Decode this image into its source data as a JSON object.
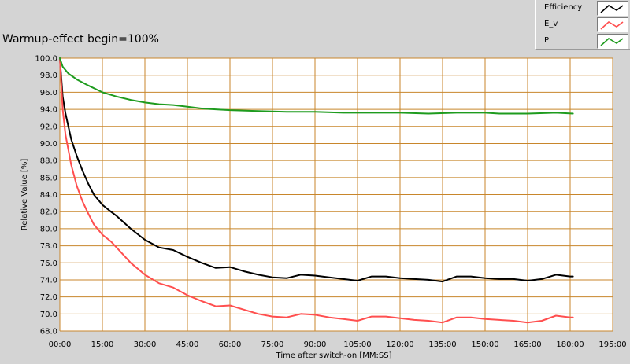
{
  "chart_data": {
    "type": "line",
    "title": "Warmup-effect begin=100%",
    "xlabel": "Time after switch-on [MM:SS]",
    "ylabel": "Relative Value [%]",
    "xlim": [
      0,
      195
    ],
    "ylim": [
      68,
      100
    ],
    "x_ticks": [
      0,
      15,
      30,
      45,
      60,
      75,
      90,
      105,
      120,
      135,
      150,
      165,
      180,
      195
    ],
    "x_tick_labels": [
      "00:00",
      "15:00",
      "30:00",
      "45:00",
      "60:00",
      "75:00",
      "90:00",
      "105:00",
      "120:00",
      "135:00",
      "150:00",
      "165:00",
      "180:00",
      "195:00"
    ],
    "y_ticks": [
      68,
      70,
      72,
      74,
      76,
      78,
      80,
      82,
      84,
      86,
      88,
      90,
      92,
      94,
      96,
      98,
      100
    ],
    "y_tick_labels": [
      "68.0",
      "70.0",
      "72.0",
      "74.0",
      "76.0",
      "78.0",
      "80.0",
      "82.0",
      "84.0",
      "86.0",
      "88.0",
      "90.0",
      "92.0",
      "94.0",
      "96.0",
      "98.0",
      "100.0"
    ],
    "grid": true,
    "legend_position": "top-right",
    "colors": {
      "plot_background": "#ffffff",
      "grid": "#c8862b",
      "efficiency": "#000000",
      "e_v": "#ff4f4f",
      "p": "#1e9b1e"
    },
    "series": [
      {
        "name": "Efficiency",
        "color": "#000000",
        "points": [
          [
            0,
            100
          ],
          [
            1,
            95.5
          ],
          [
            2,
            93.5
          ],
          [
            4,
            90.5
          ],
          [
            6,
            88.5
          ],
          [
            8,
            86.8
          ],
          [
            10,
            85.3
          ],
          [
            12,
            84
          ],
          [
            15,
            82.8
          ],
          [
            18,
            82
          ],
          [
            20,
            81.5
          ],
          [
            25,
            80
          ],
          [
            30,
            78.7
          ],
          [
            35,
            77.8
          ],
          [
            40,
            77.5
          ],
          [
            45,
            76.7
          ],
          [
            50,
            76
          ],
          [
            55,
            75.4
          ],
          [
            60,
            75.5
          ],
          [
            65,
            75
          ],
          [
            70,
            74.6
          ],
          [
            75,
            74.3
          ],
          [
            80,
            74.2
          ],
          [
            85,
            74.6
          ],
          [
            90,
            74.5
          ],
          [
            95,
            74.3
          ],
          [
            100,
            74.1
          ],
          [
            105,
            73.9
          ],
          [
            110,
            74.4
          ],
          [
            115,
            74.4
          ],
          [
            120,
            74.2
          ],
          [
            125,
            74.1
          ],
          [
            130,
            74
          ],
          [
            135,
            73.8
          ],
          [
            140,
            74.4
          ],
          [
            145,
            74.4
          ],
          [
            150,
            74.2
          ],
          [
            155,
            74.1
          ],
          [
            160,
            74.1
          ],
          [
            165,
            73.9
          ],
          [
            170,
            74.1
          ],
          [
            175,
            74.6
          ],
          [
            180,
            74.4
          ],
          [
            181,
            74.4
          ]
        ]
      },
      {
        "name": "E_v",
        "color": "#ff4f4f",
        "points": [
          [
            0,
            100
          ],
          [
            1,
            94
          ],
          [
            2,
            91
          ],
          [
            4,
            87.5
          ],
          [
            6,
            85
          ],
          [
            8,
            83.2
          ],
          [
            10,
            81.8
          ],
          [
            12,
            80.5
          ],
          [
            15,
            79.3
          ],
          [
            18,
            78.5
          ],
          [
            20,
            77.8
          ],
          [
            25,
            76
          ],
          [
            30,
            74.6
          ],
          [
            35,
            73.6
          ],
          [
            40,
            73.1
          ],
          [
            45,
            72.2
          ],
          [
            50,
            71.5
          ],
          [
            55,
            70.9
          ],
          [
            60,
            71
          ],
          [
            65,
            70.5
          ],
          [
            70,
            70
          ],
          [
            75,
            69.7
          ],
          [
            80,
            69.6
          ],
          [
            85,
            70
          ],
          [
            90,
            69.9
          ],
          [
            95,
            69.6
          ],
          [
            100,
            69.4
          ],
          [
            105,
            69.2
          ],
          [
            110,
            69.7
          ],
          [
            115,
            69.7
          ],
          [
            120,
            69.5
          ],
          [
            125,
            69.3
          ],
          [
            130,
            69.2
          ],
          [
            135,
            69
          ],
          [
            140,
            69.6
          ],
          [
            145,
            69.6
          ],
          [
            150,
            69.4
          ],
          [
            155,
            69.3
          ],
          [
            160,
            69.2
          ],
          [
            165,
            69
          ],
          [
            170,
            69.2
          ],
          [
            175,
            69.8
          ],
          [
            180,
            69.6
          ],
          [
            181,
            69.6
          ]
        ]
      },
      {
        "name": "P",
        "color": "#1e9b1e",
        "points": [
          [
            0,
            100
          ],
          [
            1,
            99
          ],
          [
            3,
            98.2
          ],
          [
            6,
            97.5
          ],
          [
            10,
            96.8
          ],
          [
            15,
            96
          ],
          [
            20,
            95.5
          ],
          [
            25,
            95.1
          ],
          [
            30,
            94.8
          ],
          [
            35,
            94.6
          ],
          [
            40,
            94.5
          ],
          [
            45,
            94.3
          ],
          [
            50,
            94.1
          ],
          [
            55,
            94
          ],
          [
            60,
            93.9
          ],
          [
            70,
            93.8
          ],
          [
            80,
            93.7
          ],
          [
            90,
            93.7
          ],
          [
            100,
            93.6
          ],
          [
            110,
            93.6
          ],
          [
            120,
            93.6
          ],
          [
            130,
            93.5
          ],
          [
            140,
            93.6
          ],
          [
            150,
            93.6
          ],
          [
            155,
            93.5
          ],
          [
            165,
            93.5
          ],
          [
            175,
            93.6
          ],
          [
            181,
            93.5
          ]
        ]
      }
    ]
  }
}
